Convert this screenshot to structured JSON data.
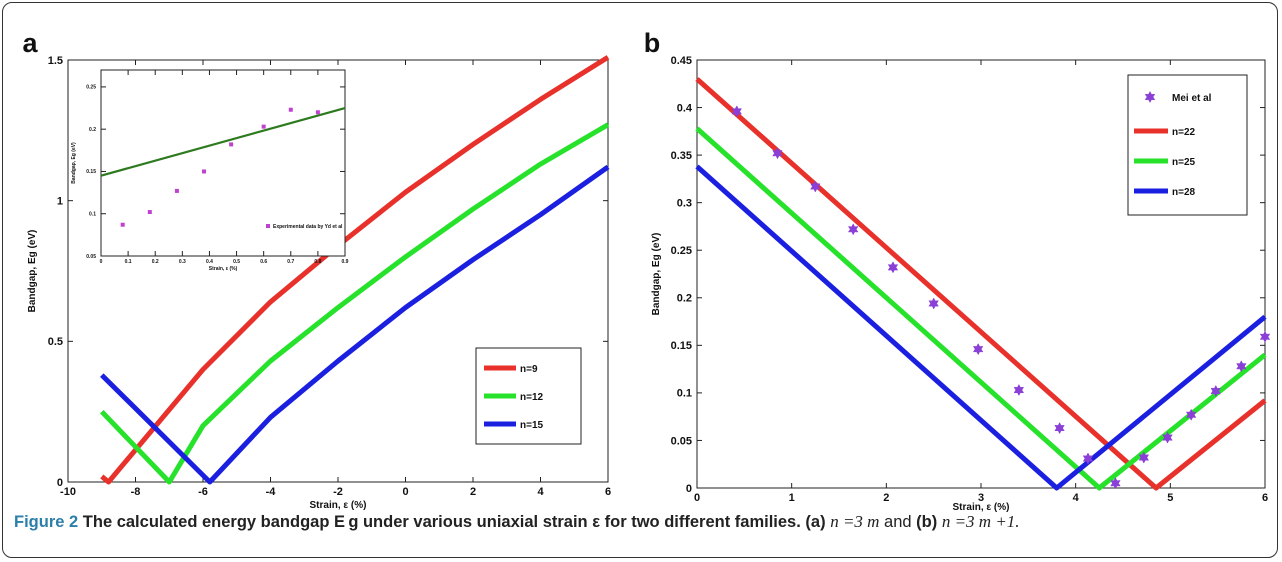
{
  "caption": {
    "label": "Figure 2",
    "title": "The calculated energy bandgap E g under various uniaxial strain ε for two different families.",
    "rest_a": "(a)",
    "rest_a_text": "n =3 m",
    "rest_and": "and",
    "rest_b": "(b)",
    "rest_b_text": "n =3 m +1."
  },
  "chart_data": [
    {
      "panel": "a",
      "type": "line",
      "xlabel": "Strain, ε (%)",
      "ylabel": "Bandgap, Eg (eV)",
      "xlim": [
        -10,
        6
      ],
      "ylim": [
        0,
        1.5
      ],
      "xticks": [
        -10,
        -8,
        -6,
        -4,
        -2,
        0,
        2,
        4,
        6
      ],
      "yticks": [
        0,
        0.5,
        1,
        1.5
      ],
      "ytick_labels": [
        "0",
        "0.5",
        "1",
        "1.5"
      ],
      "legend_position": "right-middle",
      "series": [
        {
          "name": "n=9",
          "color": "#e8312a",
          "x": [
            -9,
            -8.8,
            -6,
            -4,
            -2,
            0,
            2,
            4,
            6
          ],
          "y": [
            0.02,
            0.0,
            0.4,
            0.64,
            0.84,
            1.03,
            1.2,
            1.36,
            1.51
          ]
        },
        {
          "name": "n=12",
          "color": "#27e22b",
          "x": [
            -9,
            -7,
            -6,
            -4,
            -2,
            0,
            2,
            4,
            6
          ],
          "y": [
            0.25,
            0.0,
            0.2,
            0.43,
            0.62,
            0.8,
            0.97,
            1.13,
            1.27
          ]
        },
        {
          "name": "n=15",
          "color": "#1b1fe0",
          "x": [
            -9,
            -5.8,
            -4,
            -2,
            0,
            2,
            4,
            6
          ],
          "y": [
            0.38,
            0.0,
            0.23,
            0.43,
            0.62,
            0.79,
            0.95,
            1.12
          ]
        }
      ],
      "inset": {
        "xlabel": "Strain, ε (%)",
        "ylabel": "Bandgap, Eg (eV)",
        "xlim": [
          0,
          0.9
        ],
        "ylim": [
          0.05,
          0.27
        ],
        "xticks": [
          0,
          0.1,
          0.2,
          0.3,
          0.4,
          0.5,
          0.6,
          0.7,
          0.8,
          0.9
        ],
        "xtick_labels": [
          "0",
          "0.1",
          "0.2",
          "0.3",
          "0.4",
          "0.5",
          "0.6",
          "0.7",
          "0.8",
          "0.9"
        ],
        "yticks": [
          0.05,
          0.1,
          0.15,
          0.2,
          0.25
        ],
        "ytick_labels": [
          "0.05",
          "0.1",
          "0.15",
          "0.2",
          "0.25"
        ],
        "fit_line": {
          "color": "#2d7a1f",
          "x": [
            0,
            0.9
          ],
          "y": [
            0.145,
            0.225
          ]
        },
        "points": {
          "name": "Experimental data by Yd et al",
          "color": "#c040d0",
          "x": [
            0.08,
            0.18,
            0.28,
            0.38,
            0.48,
            0.6,
            0.7,
            0.8
          ],
          "y": [
            0.087,
            0.102,
            0.127,
            0.15,
            0.182,
            0.203,
            0.223,
            0.22
          ]
        }
      }
    },
    {
      "panel": "b",
      "type": "line",
      "xlabel": "Strain, ε (%)",
      "ylabel": "Bandgap, Eg (eV)",
      "xlim": [
        0,
        6
      ],
      "ylim": [
        0,
        0.45
      ],
      "xticks": [
        0,
        1,
        2,
        3,
        4,
        5,
        6
      ],
      "yticks": [
        0,
        0.05,
        0.1,
        0.15,
        0.2,
        0.25,
        0.3,
        0.35,
        0.4,
        0.45
      ],
      "ytick_labels": [
        "0",
        "0.05",
        "0.1",
        "0.15",
        "0.2",
        "0.25",
        "0.3",
        "0.35",
        "0.4",
        "0.45"
      ],
      "legend_position": "top-right",
      "series": [
        {
          "name": "n=22",
          "color": "#e8312a",
          "x": [
            0,
            4.85,
            6
          ],
          "y": [
            0.43,
            0.0,
            0.092
          ]
        },
        {
          "name": "n=25",
          "color": "#27e22b",
          "x": [
            0,
            4.25,
            6
          ],
          "y": [
            0.378,
            0.0,
            0.14
          ]
        },
        {
          "name": "n=28",
          "color": "#1b1fe0",
          "x": [
            0,
            3.8,
            6
          ],
          "y": [
            0.338,
            0.0,
            0.18
          ]
        }
      ],
      "points": {
        "name": "Mei et al",
        "color": "#8a3fd6",
        "x": [
          0.42,
          0.85,
          1.25,
          1.65,
          2.07,
          2.5,
          2.97,
          3.4,
          3.83,
          4.13,
          4.42,
          4.72,
          4.97,
          5.22,
          5.48,
          5.75,
          6.0
        ],
        "y": [
          0.396,
          0.352,
          0.317,
          0.272,
          0.232,
          0.194,
          0.146,
          0.103,
          0.063,
          0.031,
          0.005,
          0.032,
          0.053,
          0.077,
          0.102,
          0.128,
          0.159
        ]
      }
    }
  ],
  "panel_labels": [
    "a",
    "b"
  ]
}
